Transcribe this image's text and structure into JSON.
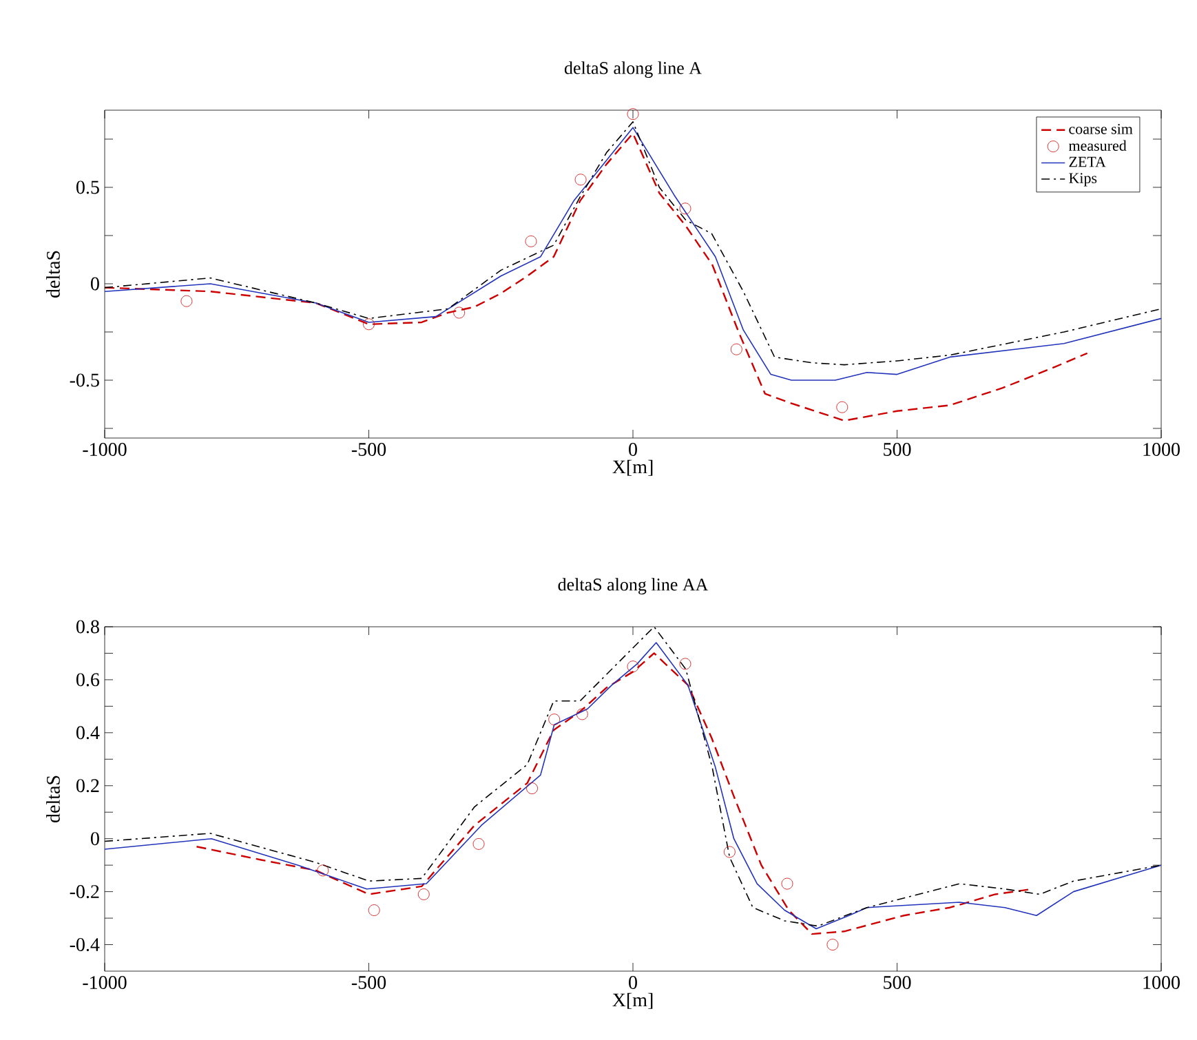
{
  "chart_data": [
    {
      "type": "line",
      "title": "deltaS along line A",
      "xlabel": "X[m]",
      "ylabel": "deltaS",
      "xlim": [
        -1000,
        1000
      ],
      "ylim": [
        -0.8,
        0.9
      ],
      "xticks": [
        -1000,
        -500,
        0,
        500,
        1000
      ],
      "yticks": [
        {
          "value": -0.75,
          "label": null
        },
        -0.5,
        {
          "value": -0.25,
          "label": null
        },
        0,
        {
          "value": 0.25,
          "label": null
        },
        0.5,
        {
          "value": 0.75,
          "label": null
        }
      ],
      "legend": "top right",
      "grid": false,
      "series": [
        {
          "name": "coarse sim",
          "color": "#cc0000",
          "line_style": "dashed",
          "x": [
            -1000,
            -800,
            -600,
            -500,
            -400,
            -350,
            -300,
            -250,
            -200,
            -150,
            -100,
            -50,
            0,
            50,
            100,
            150,
            200,
            250,
            300,
            400,
            500,
            600,
            700,
            800,
            860
          ],
          "values": [
            -0.02,
            -0.04,
            -0.1,
            -0.21,
            -0.2,
            -0.15,
            -0.12,
            -0.05,
            0.04,
            0.14,
            0.43,
            0.62,
            0.78,
            0.47,
            0.3,
            0.1,
            -0.25,
            -0.57,
            -0.62,
            -0.71,
            -0.66,
            -0.63,
            -0.54,
            -0.43,
            -0.36
          ]
        },
        {
          "name": "measured",
          "color": "#cc0000",
          "type": "scatter",
          "marker": "circle",
          "x": [
            -845,
            -500,
            -329,
            -193,
            -99,
            0,
            99,
            196,
            396
          ],
          "values": [
            -0.09,
            -0.21,
            -0.15,
            0.22,
            0.54,
            0.88,
            0.39,
            -0.34,
            -0.64
          ]
        },
        {
          "name": "ZETA",
          "color": "#2233bb",
          "line_style": "solid",
          "x": [
            -1000,
            -800,
            -600,
            -500,
            -373,
            -250,
            -175,
            -112,
            -50,
            0,
            78,
            156,
            209,
            261,
            300,
            383,
            443,
            500,
            600,
            816,
            1000
          ],
          "values": [
            -0.04,
            0.0,
            -0.1,
            -0.2,
            -0.17,
            0.04,
            0.14,
            0.43,
            0.64,
            0.81,
            0.46,
            0.14,
            -0.24,
            -0.47,
            -0.5,
            -0.5,
            -0.46,
            -0.47,
            -0.38,
            -0.31,
            -0.18
          ]
        },
        {
          "name": "Kips",
          "color": "#000000",
          "line_style": "dashdot",
          "x": [
            -1000,
            -800,
            -600,
            -500,
            -350,
            -250,
            -150,
            -100,
            -50,
            0,
            50,
            100,
            149,
            209,
            268,
            339,
            400,
            500,
            600,
            816,
            1000
          ],
          "values": [
            -0.02,
            0.03,
            -0.1,
            -0.18,
            -0.13,
            0.07,
            0.2,
            0.45,
            0.68,
            0.84,
            0.5,
            0.33,
            0.26,
            -0.04,
            -0.38,
            -0.41,
            -0.42,
            -0.4,
            -0.37,
            -0.25,
            -0.13
          ]
        }
      ]
    },
    {
      "type": "line",
      "title": "deltaS along line AA",
      "xlabel": "X[m]",
      "ylabel": "deltaS",
      "xlim": [
        -1000,
        1000
      ],
      "ylim": [
        -0.5,
        0.8
      ],
      "xticks": [
        -1000,
        -500,
        0,
        500,
        1000
      ],
      "yticks": [
        -0.4,
        {
          "value": -0.3,
          "label": null
        },
        -0.2,
        {
          "value": -0.1,
          "label": null
        },
        0,
        {
          "value": 0.1,
          "label": null
        },
        0.2,
        {
          "value": 0.3,
          "label": null
        },
        0.4,
        {
          "value": 0.5,
          "label": null
        },
        0.6,
        {
          "value": 0.7,
          "label": null
        },
        0.8
      ],
      "grid": false,
      "series": [
        {
          "color": "#cc0000",
          "line_style": "dashed",
          "x": [
            -826,
            -704,
            -600,
            -500,
            -400,
            -300,
            -200,
            -150,
            -100,
            -50,
            0,
            40,
            104,
            149,
            191,
            243,
            295,
            339,
            400,
            513,
            600,
            686,
            756
          ],
          "values": [
            -0.03,
            -0.08,
            -0.12,
            -0.21,
            -0.18,
            0.05,
            0.21,
            0.41,
            0.48,
            0.57,
            0.63,
            0.7,
            0.58,
            0.38,
            0.16,
            -0.1,
            -0.27,
            -0.36,
            -0.35,
            -0.29,
            -0.26,
            -0.21,
            -0.19
          ]
        },
        {
          "color": "#cc0000",
          "type": "scatter",
          "marker": "circle",
          "x": [
            -587,
            -490,
            -396,
            -292,
            -191,
            -149,
            -96,
            0,
            99,
            183,
            292,
            378
          ],
          "values": [
            -0.12,
            -0.27,
            -0.21,
            -0.02,
            0.19,
            0.45,
            0.47,
            0.65,
            0.66,
            -0.05,
            -0.17,
            -0.4
          ]
        },
        {
          "color": "#2233bb",
          "line_style": "solid",
          "x": [
            -1000,
            -798,
            -634,
            -504,
            -391,
            -287,
            -175,
            -149,
            -86,
            -40,
            8,
            44,
            104,
            156,
            191,
            235,
            287,
            347,
            409,
            443,
            618,
            704,
            764,
            834,
            1000
          ],
          "values": [
            -0.04,
            0.0,
            -0.1,
            -0.19,
            -0.17,
            0.05,
            0.24,
            0.43,
            0.49,
            0.58,
            0.66,
            0.74,
            0.58,
            0.27,
            0.0,
            -0.17,
            -0.27,
            -0.34,
            -0.29,
            -0.26,
            -0.24,
            -0.26,
            -0.29,
            -0.2,
            -0.1
          ]
        },
        {
          "color": "#000000",
          "line_style": "dashdot",
          "x": [
            -1000,
            -800,
            -600,
            -500,
            -400,
            -300,
            -200,
            -150,
            -100,
            0,
            40,
            100,
            150,
            183,
            227,
            287,
            350,
            443,
            618,
            704,
            770,
            834,
            1000
          ],
          "values": [
            -0.01,
            0.02,
            -0.09,
            -0.16,
            -0.15,
            0.12,
            0.28,
            0.52,
            0.52,
            0.72,
            0.8,
            0.64,
            0.27,
            -0.07,
            -0.26,
            -0.31,
            -0.33,
            -0.26,
            -0.17,
            -0.19,
            -0.21,
            -0.16,
            -0.1
          ]
        }
      ]
    }
  ]
}
